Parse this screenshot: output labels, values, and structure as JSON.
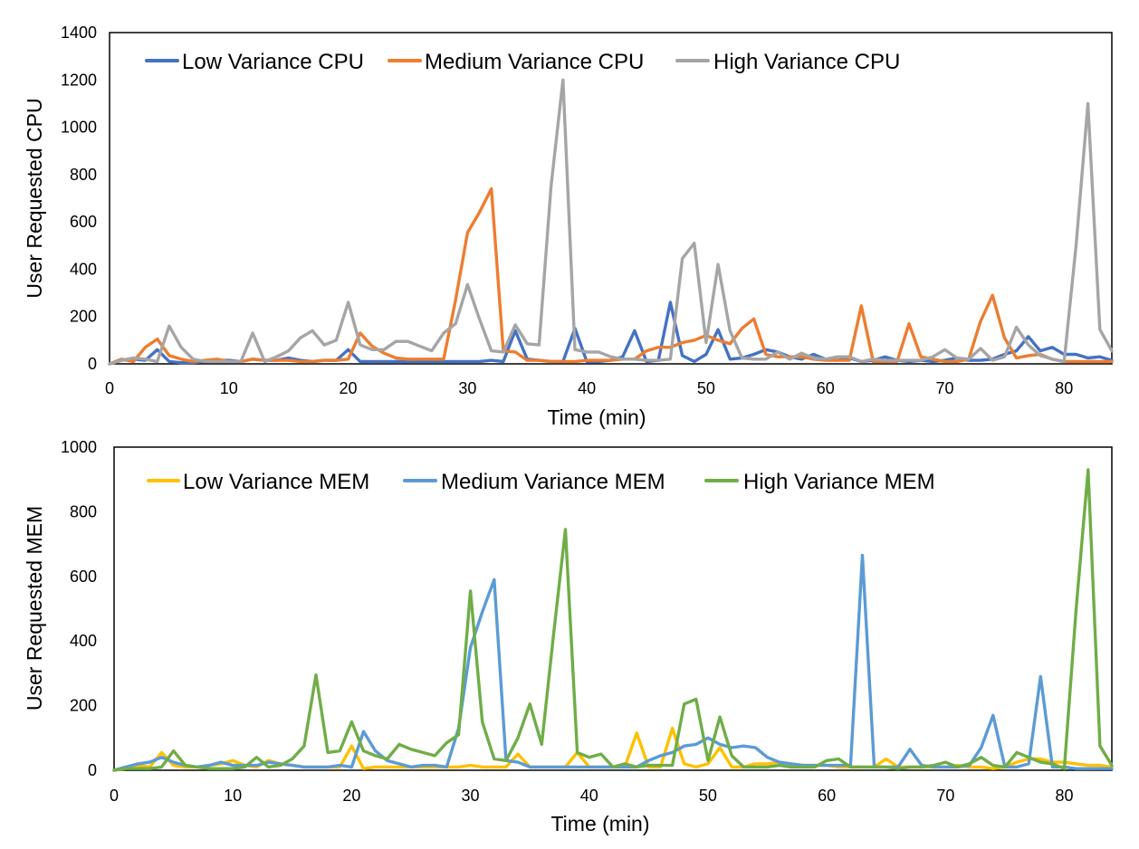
{
  "chart_data": [
    {
      "type": "line",
      "title": "",
      "xlabel": "Time (min)",
      "ylabel": "User Requested CPU",
      "xlim": [
        0,
        84
      ],
      "ylim": [
        0,
        1400
      ],
      "xticks": [
        0,
        10,
        20,
        30,
        40,
        50,
        60,
        70,
        80
      ],
      "yticks": [
        0,
        200,
        400,
        600,
        800,
        1000,
        1200,
        1400
      ],
      "grid": false,
      "legend": "top-left",
      "x": [
        0,
        1,
        2,
        3,
        4,
        5,
        6,
        7,
        8,
        9,
        10,
        11,
        12,
        13,
        14,
        15,
        16,
        17,
        18,
        19,
        20,
        21,
        22,
        23,
        24,
        25,
        26,
        27,
        28,
        29,
        30,
        31,
        32,
        33,
        34,
        35,
        36,
        37,
        38,
        39,
        40,
        41,
        42,
        43,
        44,
        45,
        46,
        47,
        48,
        49,
        50,
        51,
        52,
        53,
        54,
        55,
        56,
        57,
        58,
        59,
        60,
        61,
        62,
        63,
        64,
        65,
        66,
        67,
        68,
        69,
        70,
        71,
        72,
        73,
        74,
        75,
        76,
        77,
        78,
        79,
        80,
        81,
        82,
        83,
        84
      ],
      "series": [
        {
          "name": "Low Variance CPU",
          "color": "#4472C4",
          "values": [
            0,
            15,
            20,
            15,
            60,
            10,
            5,
            5,
            10,
            15,
            15,
            10,
            20,
            15,
            15,
            25,
            15,
            10,
            15,
            15,
            60,
            10,
            10,
            10,
            10,
            10,
            10,
            10,
            10,
            10,
            10,
            10,
            15,
            10,
            140,
            20,
            15,
            10,
            10,
            150,
            10,
            10,
            15,
            30,
            140,
            10,
            15,
            260,
            35,
            10,
            40,
            145,
            20,
            25,
            40,
            60,
            50,
            30,
            20,
            40,
            20,
            15,
            25,
            10,
            15,
            30,
            15,
            10,
            15,
            10,
            15,
            25,
            15,
            15,
            20,
            40,
            55,
            115,
            55,
            70,
            40,
            40,
            25,
            30,
            15
          ]
        },
        {
          "name": "Medium Variance CPU",
          "color": "#ED7D31",
          "values": [
            0,
            20,
            10,
            70,
            105,
            35,
            20,
            10,
            15,
            20,
            10,
            10,
            20,
            15,
            15,
            15,
            10,
            10,
            15,
            15,
            20,
            130,
            75,
            45,
            25,
            20,
            20,
            20,
            20,
            270,
            555,
            640,
            740,
            55,
            50,
            15,
            15,
            10,
            10,
            10,
            15,
            15,
            15,
            20,
            20,
            55,
            70,
            70,
            90,
            100,
            120,
            100,
            85,
            150,
            190,
            40,
            30,
            30,
            30,
            20,
            15,
            15,
            15,
            245,
            10,
            10,
            10,
            170,
            30,
            20,
            10,
            10,
            20,
            180,
            290,
            110,
            25,
            35,
            40,
            20,
            10,
            10,
            10,
            10,
            10
          ]
        },
        {
          "name": "High Variance CPU",
          "color": "#A5A5A5",
          "values": [
            0,
            15,
            25,
            20,
            10,
            160,
            70,
            20,
            10,
            10,
            10,
            10,
            130,
            10,
            30,
            55,
            110,
            140,
            80,
            100,
            260,
            80,
            60,
            60,
            95,
            95,
            75,
            55,
            130,
            170,
            335,
            190,
            55,
            50,
            165,
            85,
            80,
            750,
            1200,
            60,
            50,
            50,
            30,
            20,
            20,
            15,
            15,
            20,
            445,
            510,
            90,
            420,
            140,
            25,
            20,
            20,
            50,
            20,
            45,
            25,
            20,
            30,
            30,
            10,
            20,
            15,
            15,
            15,
            15,
            30,
            60,
            25,
            20,
            65,
            15,
            30,
            155,
            80,
            35,
            20,
            10,
            500,
            1100,
            145,
            55
          ]
        }
      ]
    },
    {
      "type": "line",
      "title": "",
      "xlabel": "Time (min)",
      "ylabel": "User Requested MEM",
      "xlim": [
        0,
        84
      ],
      "ylim": [
        0,
        1000
      ],
      "xticks": [
        0,
        10,
        20,
        30,
        40,
        50,
        60,
        70,
        80
      ],
      "yticks": [
        0,
        200,
        400,
        600,
        800,
        1000
      ],
      "grid": false,
      "legend": "top-left",
      "x": [
        0,
        1,
        2,
        3,
        4,
        5,
        6,
        7,
        8,
        9,
        10,
        11,
        12,
        13,
        14,
        15,
        16,
        17,
        18,
        19,
        20,
        21,
        22,
        23,
        24,
        25,
        26,
        27,
        28,
        29,
        30,
        31,
        32,
        33,
        34,
        35,
        36,
        37,
        38,
        39,
        40,
        41,
        42,
        43,
        44,
        45,
        46,
        47,
        48,
        49,
        50,
        51,
        52,
        53,
        54,
        55,
        56,
        57,
        58,
        59,
        60,
        61,
        62,
        63,
        64,
        65,
        66,
        67,
        68,
        69,
        70,
        71,
        72,
        73,
        74,
        75,
        76,
        77,
        78,
        79,
        80,
        81,
        82,
        83,
        84
      ],
      "series": [
        {
          "name": "Low Variance MEM",
          "color": "#FFC000",
          "values": [
            0,
            10,
            15,
            10,
            55,
            15,
            10,
            10,
            15,
            20,
            30,
            15,
            10,
            30,
            20,
            15,
            10,
            10,
            10,
            10,
            75,
            5,
            10,
            10,
            10,
            10,
            10,
            10,
            10,
            10,
            15,
            10,
            10,
            10,
            50,
            10,
            10,
            10,
            10,
            55,
            10,
            10,
            10,
            10,
            115,
            10,
            10,
            130,
            20,
            10,
            20,
            70,
            10,
            10,
            20,
            20,
            25,
            20,
            15,
            15,
            15,
            10,
            10,
            10,
            10,
            35,
            10,
            10,
            10,
            10,
            10,
            15,
            10,
            10,
            5,
            10,
            25,
            35,
            35,
            25,
            25,
            20,
            15,
            15,
            10
          ]
        },
        {
          "name": "Medium Variance MEM",
          "color": "#5B9BD5",
          "values": [
            0,
            10,
            20,
            25,
            40,
            25,
            15,
            10,
            15,
            25,
            15,
            15,
            15,
            25,
            20,
            15,
            10,
            10,
            10,
            15,
            10,
            120,
            60,
            30,
            20,
            10,
            15,
            15,
            10,
            130,
            380,
            490,
            590,
            30,
            25,
            10,
            10,
            10,
            10,
            10,
            10,
            10,
            10,
            10,
            10,
            30,
            45,
            55,
            75,
            80,
            100,
            80,
            70,
            75,
            70,
            40,
            25,
            20,
            15,
            15,
            15,
            15,
            15,
            665,
            10,
            10,
            10,
            65,
            15,
            10,
            10,
            10,
            15,
            70,
            170,
            10,
            10,
            20,
            290,
            10,
            10,
            5,
            5,
            5,
            5
          ]
        },
        {
          "name": "High Variance MEM",
          "color": "#70AD47",
          "values": [
            0,
            5,
            5,
            5,
            10,
            60,
            15,
            10,
            5,
            5,
            5,
            10,
            40,
            10,
            15,
            35,
            75,
            295,
            55,
            60,
            150,
            60,
            45,
            35,
            80,
            65,
            55,
            45,
            85,
            110,
            555,
            150,
            35,
            30,
            100,
            205,
            80,
            420,
            745,
            55,
            40,
            50,
            10,
            20,
            10,
            15,
            15,
            15,
            205,
            220,
            30,
            165,
            45,
            10,
            10,
            10,
            15,
            10,
            10,
            10,
            30,
            35,
            10,
            10,
            10,
            10,
            5,
            10,
            10,
            15,
            25,
            10,
            20,
            40,
            15,
            10,
            55,
            40,
            25,
            20,
            5,
            500,
            930,
            75,
            15
          ]
        }
      ]
    }
  ]
}
